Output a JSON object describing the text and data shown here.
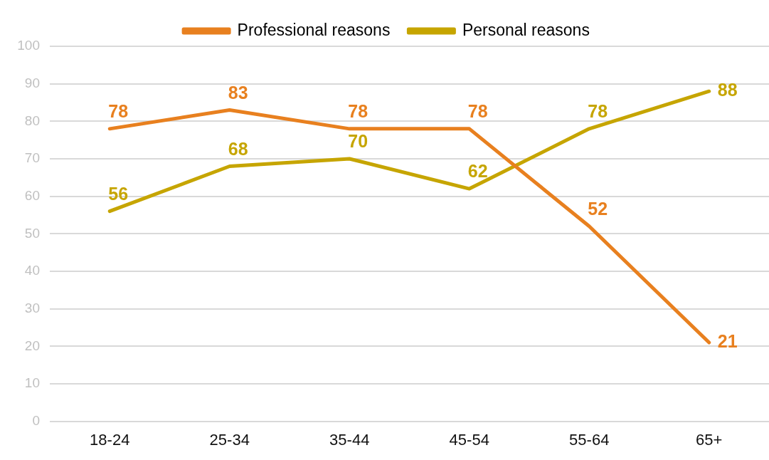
{
  "chart_data": {
    "type": "line",
    "categories": [
      "18-24",
      "25-34",
      "35-44",
      "45-54",
      "55-64",
      "65+"
    ],
    "series": [
      {
        "name": "Professional reasons",
        "color": "#e8801f",
        "values": [
          78,
          83,
          78,
          78,
          52,
          21
        ]
      },
      {
        "name": "Personal reasons",
        "color": "#c6a500",
        "values": [
          56,
          68,
          70,
          62,
          78,
          88
        ]
      }
    ],
    "ylim": [
      0,
      100
    ],
    "yticks": [
      0,
      10,
      20,
      30,
      40,
      50,
      60,
      70,
      80,
      90,
      100
    ],
    "grid": "y",
    "legend": "top",
    "data_labels": true
  }
}
